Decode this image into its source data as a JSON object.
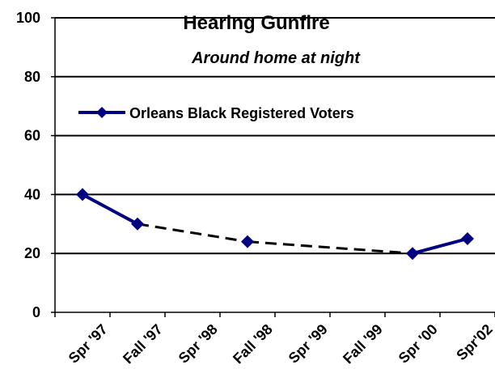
{
  "chart_data": {
    "type": "line",
    "title": "Hearing Gunfire",
    "subtitle": "Around home at night",
    "categories": [
      "Spr '97",
      "Fall '97",
      "Spr '98",
      "Fall '98",
      "Spr '99",
      "Fall '99",
      "Spr '00",
      "Spr'02"
    ],
    "ylim": [
      0,
      100
    ],
    "yticks": [
      0,
      20,
      40,
      60,
      80,
      100
    ],
    "grid": true,
    "legend_position": "top-left",
    "series": [
      {
        "name": "Orleans Black Registered Voters",
        "color": "#000080",
        "marker": "diamond",
        "points": [
          {
            "x": "Spr '97",
            "y": 40
          },
          {
            "x": "Fall '97",
            "y": 30
          },
          {
            "x": "Fall '98",
            "y": 24
          },
          {
            "x": "Spr '00",
            "y": 20
          },
          {
            "x": "Spr'02",
            "y": 25
          }
        ]
      }
    ],
    "gap_line": {
      "color": "#000000",
      "style": "dashed"
    }
  }
}
